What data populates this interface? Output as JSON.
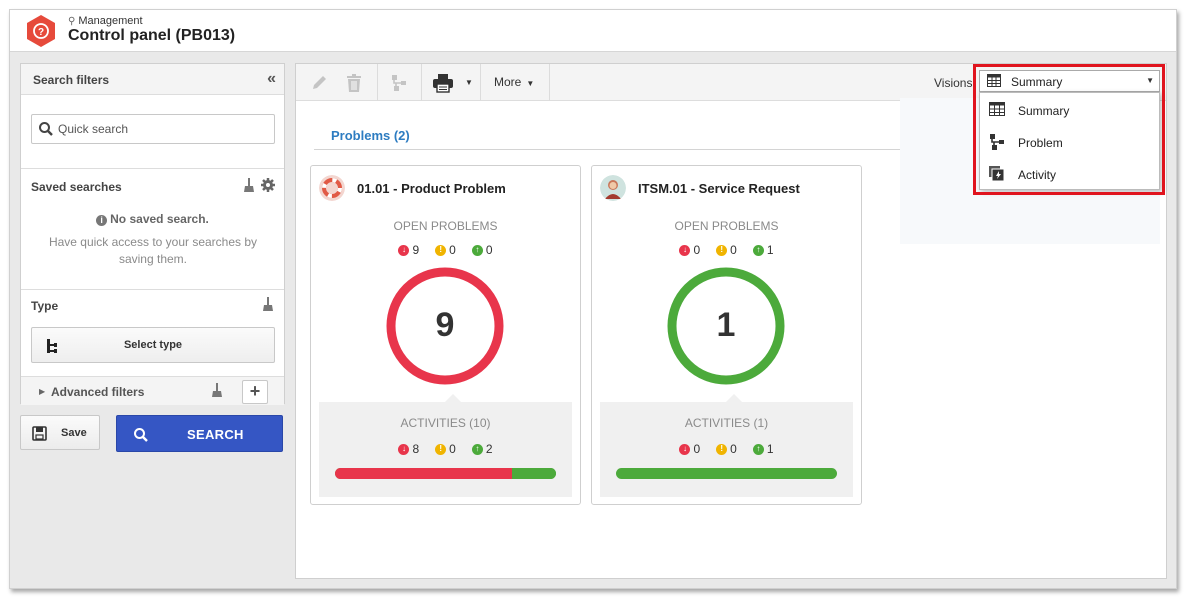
{
  "header": {
    "breadcrumb": "Management",
    "title": "Control panel (PB013)"
  },
  "sidebar": {
    "title": "Search filters",
    "quick_search_placeholder": "Quick search",
    "saved_searches_title": "Saved searches",
    "no_saved": "No saved search.",
    "no_saved_desc": "Have quick access to your searches by saving them.",
    "type_title": "Type",
    "select_type_label": "Select type",
    "advanced_filters_label": "Advanced filters",
    "save_label": "Save",
    "search_label": "SEARCH"
  },
  "toolbar": {
    "more_label": "More",
    "visions_label": "Visions:"
  },
  "visions": {
    "selected": "Summary",
    "options": [
      "Summary",
      "Problem",
      "Activity"
    ]
  },
  "section": {
    "title": "Problems (2)"
  },
  "cards": [
    {
      "title": "01.01 - Product Problem",
      "open_label": "OPEN PROBLEMS",
      "open_late": "9",
      "open_warning": "0",
      "open_ontime": "0",
      "total": "9",
      "ring_color": "#e8354b",
      "activities_label": "ACTIVITIES (10)",
      "act_late": "8",
      "act_warning": "0",
      "act_ontime": "2",
      "act_late_fraction": 0.8
    },
    {
      "title": "ITSM.01 - Service Request",
      "open_label": "OPEN PROBLEMS",
      "open_late": "0",
      "open_warning": "0",
      "open_ontime": "1",
      "total": "1",
      "ring_color": "#4caa3b",
      "activities_label": "ACTIVITIES (1)",
      "act_late": "0",
      "act_warning": "0",
      "act_ontime": "1",
      "act_late_fraction": 0
    }
  ],
  "colors": {
    "accent_blue": "#2d7cc1",
    "search_button": "#3556c4",
    "late": "#e8354b",
    "warning": "#f0b400",
    "ontime": "#4caa3b",
    "highlight": "#e0141e"
  },
  "icons": {
    "logo": "question-hexagon-icon",
    "edit": "pencil-icon",
    "delete": "trash-icon",
    "workflow": "workflow-icon",
    "print": "printer-icon"
  }
}
